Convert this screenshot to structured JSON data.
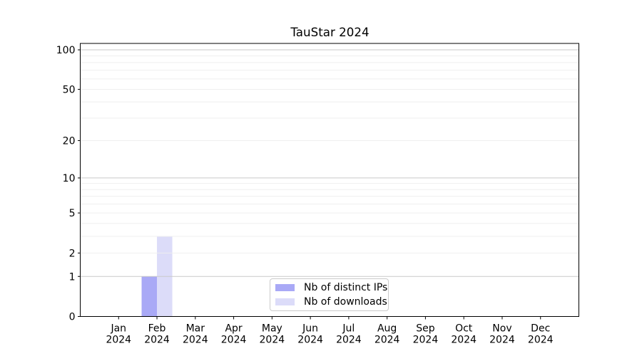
{
  "chart_data": {
    "type": "bar",
    "title": "TauStar 2024",
    "xlabel": "",
    "ylabel": "",
    "categories": [
      "Jan 2024",
      "Feb 2024",
      "Mar 2024",
      "Apr 2024",
      "May 2024",
      "Jun 2024",
      "Jul 2024",
      "Aug 2024",
      "Sep 2024",
      "Oct 2024",
      "Nov 2024",
      "Dec 2024"
    ],
    "series": [
      {
        "name": "Nb of distinct IPs",
        "color": "#a9a9f6",
        "values": [
          0,
          1,
          0,
          0,
          0,
          0,
          0,
          0,
          0,
          0,
          0,
          0
        ]
      },
      {
        "name": "Nb of downloads",
        "color": "#dcdcf9",
        "values": [
          0,
          3,
          0,
          0,
          0,
          0,
          0,
          0,
          0,
          0,
          0,
          0
        ]
      }
    ],
    "y_axis": {
      "scale": "log1p",
      "tick_labels": [
        0,
        1,
        2,
        5,
        10,
        20,
        50,
        100
      ],
      "major_gridlines": [
        1,
        10,
        100
      ],
      "minor_gridlines": [
        2,
        3,
        4,
        5,
        6,
        7,
        8,
        9,
        20,
        30,
        40,
        50,
        60,
        70,
        80,
        90
      ],
      "ylim": [
        0,
        112
      ]
    },
    "grid": true,
    "legend": {
      "position": "lower center"
    },
    "colors": {
      "major_grid": "#c9c9c9",
      "minor_grid": "#efefef",
      "axis": "#000000",
      "text": "#000000",
      "background": "#ffffff"
    }
  }
}
